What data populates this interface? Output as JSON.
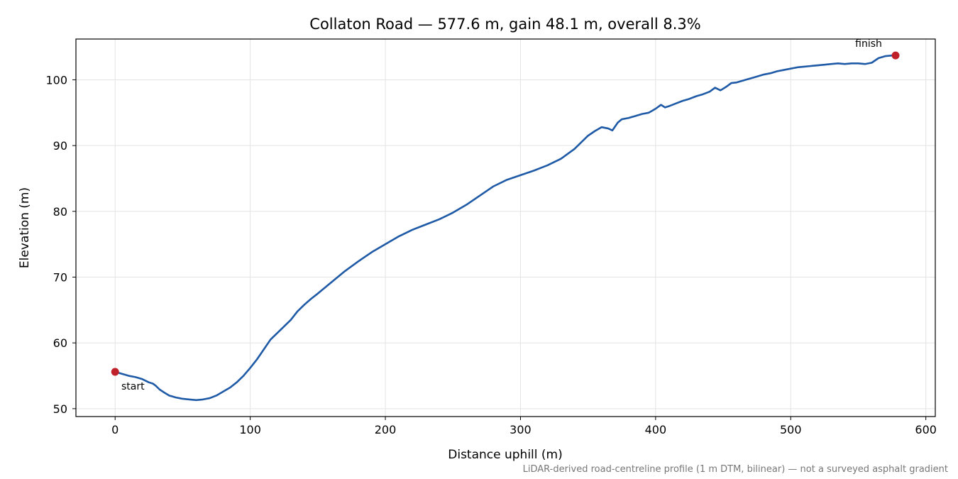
{
  "chart_data": {
    "type": "line",
    "title": "Collaton Road — 577.6 m, gain 48.1 m, overall 8.3%",
    "xlabel": "Distance uphill (m)",
    "ylabel": "Elevation (m)",
    "xlim": [
      -29,
      607
    ],
    "ylim": [
      48.8,
      106.2
    ],
    "xticks": [
      0,
      100,
      200,
      300,
      400,
      500,
      600
    ],
    "yticks": [
      50,
      60,
      70,
      80,
      90,
      100
    ],
    "grid": true,
    "line_color": "#1f5aa6",
    "marker_color": "#c0202a",
    "series": [
      {
        "x": [
          0,
          5,
          10,
          15,
          20,
          25,
          28,
          30,
          33,
          36,
          40,
          45,
          50,
          55,
          60,
          65,
          70,
          75,
          80,
          85,
          90,
          95,
          100,
          105,
          110,
          115,
          120,
          125,
          130,
          135,
          140,
          145,
          150,
          160,
          170,
          180,
          190,
          200,
          210,
          220,
          230,
          240,
          250,
          260,
          270,
          280,
          290,
          300,
          310,
          320,
          330,
          340,
          350,
          355,
          360,
          365,
          368,
          372,
          375,
          380,
          385,
          390,
          395,
          400,
          404,
          407,
          410,
          415,
          420,
          425,
          430,
          435,
          440,
          444,
          448,
          452,
          456,
          460,
          465,
          470,
          475,
          480,
          485,
          490,
          495,
          500,
          505,
          510,
          515,
          520,
          525,
          530,
          535,
          540,
          545,
          550,
          555,
          560,
          565,
          570,
          575,
          577.6
        ],
        "y": [
          55.6,
          55.3,
          55.0,
          54.8,
          54.5,
          54.0,
          53.8,
          53.5,
          52.9,
          52.5,
          52.0,
          51.7,
          51.5,
          51.4,
          51.3,
          51.4,
          51.6,
          52.0,
          52.6,
          53.2,
          54.0,
          55.0,
          56.2,
          57.5,
          59.0,
          60.5,
          61.5,
          62.5,
          63.5,
          64.8,
          65.8,
          66.7,
          67.5,
          69.2,
          70.9,
          72.4,
          73.8,
          75.0,
          76.2,
          77.2,
          78.0,
          78.8,
          79.8,
          81.0,
          82.4,
          83.8,
          84.8,
          85.5,
          86.2,
          87.0,
          88.0,
          89.5,
          91.5,
          92.2,
          92.8,
          92.6,
          92.3,
          93.5,
          94.0,
          94.2,
          94.5,
          94.8,
          95.0,
          95.6,
          96.2,
          95.8,
          96.0,
          96.4,
          96.8,
          97.1,
          97.5,
          97.8,
          98.2,
          98.8,
          98.4,
          98.9,
          99.5,
          99.6,
          99.9,
          100.2,
          100.5,
          100.8,
          101.0,
          101.3,
          101.5,
          101.7,
          101.9,
          102.0,
          102.1,
          102.2,
          102.3,
          102.4,
          102.5,
          102.4,
          102.5,
          102.5,
          102.4,
          102.6,
          103.3,
          103.6,
          103.7,
          103.7
        ]
      }
    ],
    "annotations": [
      {
        "label": "start",
        "x": 0,
        "y": 55.6
      },
      {
        "label": "finish",
        "x": 577.6,
        "y": 103.7
      }
    ],
    "footnote": "LiDAR-derived road-centreline profile (1 m DTM, bilinear) — not a surveyed asphalt gradient"
  }
}
